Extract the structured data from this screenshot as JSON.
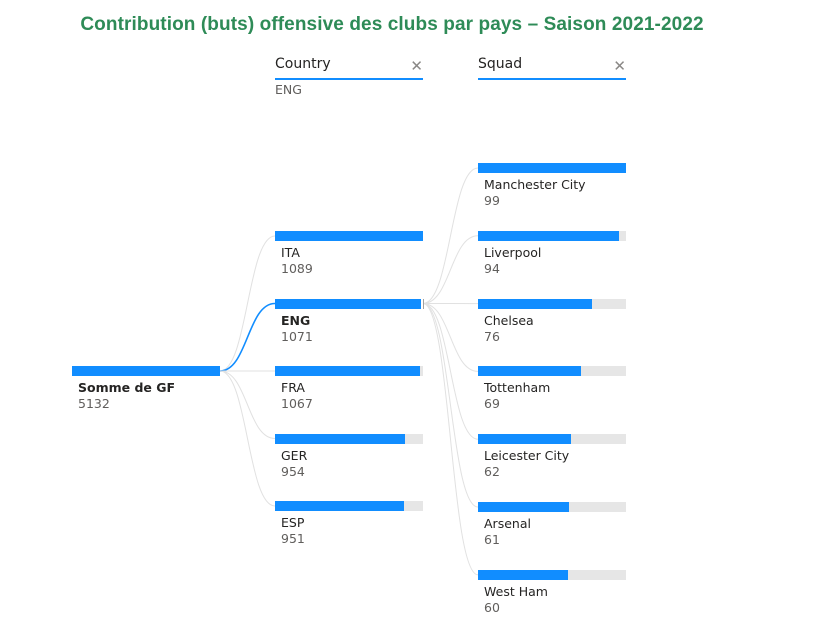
{
  "title": "Contribution (buts) offensive des clubs par pays – Saison 2021-2022",
  "levels": [
    {
      "header": "Country",
      "filter": "ENG",
      "close_icon": "close-icon"
    },
    {
      "header": "Squad",
      "filter": "",
      "close_icon": "close-icon"
    }
  ],
  "colors": {
    "bar": "#118dff",
    "track": "#e6e6e6",
    "link": "#e1e1e1",
    "link_selected": "#118dff",
    "title": "#2e8b57"
  },
  "chart_data": {
    "type": "decomposition_tree",
    "title": "Contribution (buts) offensive des clubs par pays – Saison 2021-2022",
    "root": {
      "label": "Somme de GF",
      "value": 5132
    },
    "countries": [
      {
        "label": "ITA",
        "value": 1089
      },
      {
        "label": "ENG",
        "value": 1071,
        "selected": true
      },
      {
        "label": "FRA",
        "value": 1067
      },
      {
        "label": "GER",
        "value": 954
      },
      {
        "label": "ESP",
        "value": 951
      }
    ],
    "squads": [
      {
        "label": "Manchester City",
        "value": 99
      },
      {
        "label": "Liverpool",
        "value": 94
      },
      {
        "label": "Chelsea",
        "value": 76
      },
      {
        "label": "Tottenham",
        "value": 69
      },
      {
        "label": "Leicester City",
        "value": 62
      },
      {
        "label": "Arsenal",
        "value": 61
      },
      {
        "label": "West Ham",
        "value": 60
      }
    ]
  }
}
